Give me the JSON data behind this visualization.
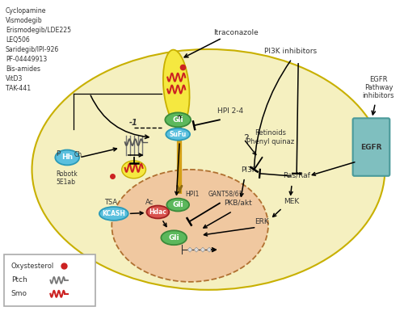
{
  "bg_color": "#ffffff",
  "cell_color": "#f5f0c0",
  "nucleus_color": "#f0c8a0",
  "labels_left": [
    "Cyclopamine",
    "Vismodegib",
    "Erismodegib/LDE225",
    "LEQ506",
    "Saridegib/IPI-926",
    "PF-04449913",
    "Bis-amides",
    "VitD3",
    "TAK-441"
  ],
  "colors": {
    "green_oval": "#5cb85c",
    "red_oval": "#d9534f",
    "teal_oval": "#5bc0de",
    "dark_text": "#222222",
    "egfr_box": "#7fbfbf",
    "smo_red": "#cc2222",
    "ptch_gray": "#888888",
    "cilia_yellow": "#f0e060",
    "gold": "#b8860b"
  }
}
